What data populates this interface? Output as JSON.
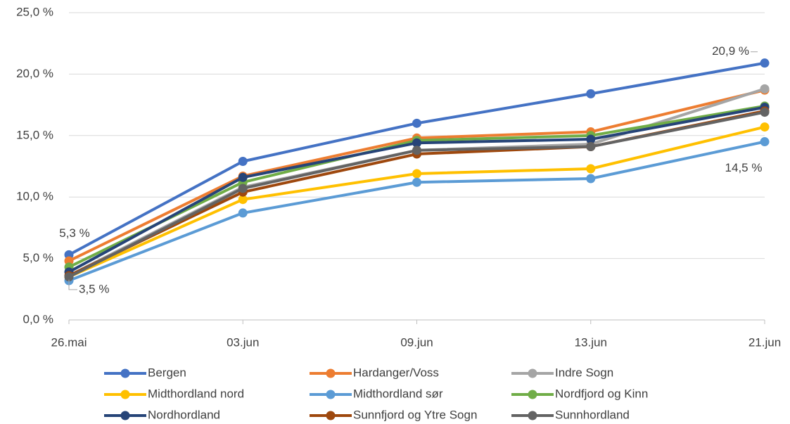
{
  "chart_data": {
    "type": "line",
    "categories": [
      "26.mai",
      "03.jun",
      "09.jun",
      "13.jun",
      "21.jun"
    ],
    "ylim": [
      0,
      25
    ],
    "yticks": [
      {
        "value": 0,
        "label": "0,0 %"
      },
      {
        "value": 5,
        "label": "5,0 %"
      },
      {
        "value": 10,
        "label": "10,0 %"
      },
      {
        "value": 15,
        "label": "15,0 %"
      },
      {
        "value": 20,
        "label": "20,0 %"
      },
      {
        "value": 25,
        "label": "25,0 %"
      }
    ],
    "grid": true,
    "legend": "bottom",
    "series": [
      {
        "name": "Bergen",
        "color": "#4472c4",
        "values": [
          5.3,
          12.9,
          16.0,
          18.4,
          20.9
        ],
        "value_labels": [
          "5,3 %",
          null,
          null,
          null,
          "20,9 %"
        ]
      },
      {
        "name": "Hardanger/Voss",
        "color": "#ed7d31",
        "values": [
          4.8,
          11.7,
          14.8,
          15.3,
          18.7
        ]
      },
      {
        "name": "Indre Sogn",
        "color": "#a5a5a5",
        "values": [
          3.6,
          10.8,
          13.8,
          14.3,
          18.8
        ]
      },
      {
        "name": "Midthordland nord",
        "color": "#ffc000",
        "values": [
          3.5,
          9.8,
          11.9,
          12.3,
          15.7
        ],
        "value_labels": [
          "3,5 %",
          null,
          null,
          null,
          null
        ]
      },
      {
        "name": "Midthordland sør",
        "color": "#5b9bd5",
        "values": [
          3.2,
          8.7,
          11.2,
          11.5,
          14.5
        ],
        "value_labels": [
          null,
          null,
          null,
          null,
          "14,5 %"
        ]
      },
      {
        "name": "Nordfjord og Kinn",
        "color": "#70ad47",
        "values": [
          4.3,
          11.2,
          14.6,
          15.0,
          17.4
        ]
      },
      {
        "name": "Nordhordland",
        "color": "#264478",
        "values": [
          3.9,
          11.6,
          14.4,
          14.7,
          17.3
        ]
      },
      {
        "name": "Sunnfjord og Ytre Sogn",
        "color": "#9e480e",
        "values": [
          3.6,
          10.4,
          13.5,
          14.1,
          17.0
        ]
      },
      {
        "name": "Sunnhordland",
        "color": "#636363",
        "values": [
          3.5,
          10.7,
          13.8,
          14.1,
          16.9
        ]
      }
    ]
  }
}
